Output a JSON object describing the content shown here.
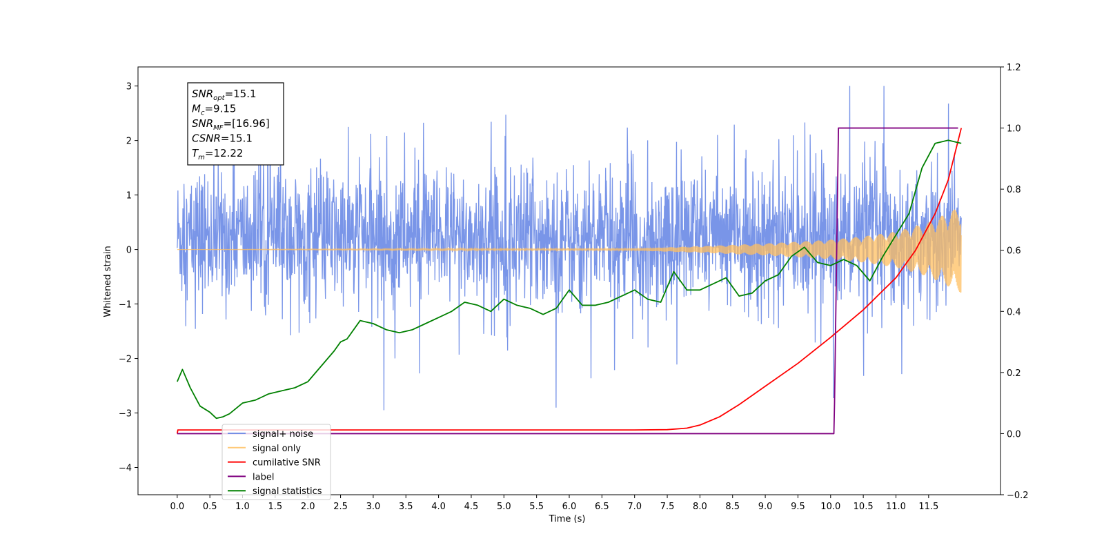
{
  "chart_data": {
    "type": "line",
    "xlabel": "Time (s)",
    "ylabel_left": "Whitened strain",
    "ylabel_right": "",
    "xlim": [
      -0.6,
      12.6
    ],
    "ylim_left": [
      -4.5,
      3.35
    ],
    "ylim_right": [
      -0.2,
      1.2
    ],
    "x_ticks": [
      "0.0",
      "0.5",
      "1.0",
      "1.5",
      "2.0",
      "2.5",
      "3.0",
      "3.5",
      "4.0",
      "4.5",
      "5.0",
      "5.5",
      "6.0",
      "6.5",
      "7.0",
      "7.5",
      "8.0",
      "8.5",
      "9.0",
      "9.5",
      "10.0",
      "10.5",
      "11.0",
      "11.5"
    ],
    "y_ticks_left": [
      3,
      2,
      1,
      0,
      -1,
      -2,
      -3,
      -4
    ],
    "y_ticks_right": [
      1.2,
      1.0,
      0.8,
      0.6,
      0.4,
      0.2,
      0.0,
      -0.2
    ],
    "y_tick_labels_left": [
      "3",
      "2",
      "1",
      "0",
      "−1",
      "−2",
      "−3",
      "−4"
    ],
    "y_tick_labels_right": [
      "1.2",
      "1.0",
      "0.8",
      "0.6",
      "0.4",
      "0.2",
      "0.0",
      "−0.2"
    ],
    "grid": false,
    "legend_placement": "lower-left",
    "annotation": {
      "lines": [
        {
          "base": "SNR",
          "sub": "opt",
          "rest": "=15.1"
        },
        {
          "base": "M",
          "sub": "c",
          "rest": "=9.15"
        },
        {
          "base": "SNR",
          "sub": "MF",
          "rest": "=[16.96]"
        },
        {
          "base": "CSNR",
          "sub": "",
          "rest": "=15.1"
        },
        {
          "base": "T",
          "sub": "m",
          "rest": "=12.22"
        }
      ]
    },
    "series": [
      {
        "name": "signal+ noise",
        "color": "#6283e4",
        "axis": "left",
        "style": "noise",
        "x_range": [
          0.0,
          12.0
        ],
        "approx_envelope": {
          "upper": 2.4,
          "lower": -2.0,
          "peak_max": 3.0,
          "peak_min": -3.2
        }
      },
      {
        "name": "signal only",
        "color": "#ffbf60",
        "axis": "left",
        "style": "chirp",
        "x_range": [
          0.0,
          12.0
        ],
        "amplitude": [
          [
            0.0,
            0.0
          ],
          [
            7.0,
            0.02
          ],
          [
            8.0,
            0.06
          ],
          [
            9.0,
            0.11
          ],
          [
            10.0,
            0.18
          ],
          [
            10.5,
            0.24
          ],
          [
            11.0,
            0.33
          ],
          [
            11.5,
            0.5
          ],
          [
            12.0,
            0.8
          ]
        ]
      },
      {
        "name": "cumilative SNR",
        "color": "#ff0000",
        "axis": "right",
        "x": [
          0.0,
          0.01,
          1.0,
          2.0,
          3.0,
          4.0,
          5.0,
          6.0,
          7.0,
          7.5,
          7.8,
          8.0,
          8.3,
          8.6,
          9.0,
          9.5,
          10.0,
          10.5,
          11.0,
          11.3,
          11.6,
          11.8,
          12.0
        ],
        "y": [
          0.0,
          0.012,
          0.012,
          0.012,
          0.012,
          0.012,
          0.012,
          0.012,
          0.012,
          0.013,
          0.018,
          0.028,
          0.055,
          0.095,
          0.155,
          0.23,
          0.315,
          0.405,
          0.51,
          0.6,
          0.72,
          0.83,
          1.0
        ]
      },
      {
        "name": "label",
        "color": "#800080",
        "axis": "right",
        "x": [
          0.0,
          10.05,
          10.06,
          10.12,
          11.95
        ],
        "y": [
          0.0,
          0.0,
          0.1,
          1.0,
          1.0
        ]
      },
      {
        "name": "signal statistics",
        "color": "#008000",
        "axis": "right",
        "x": [
          0.0,
          0.08,
          0.2,
          0.35,
          0.5,
          0.6,
          0.7,
          0.8,
          1.0,
          1.2,
          1.4,
          1.6,
          1.8,
          2.0,
          2.2,
          2.4,
          2.5,
          2.6,
          2.8,
          3.0,
          3.2,
          3.4,
          3.6,
          3.8,
          4.0,
          4.2,
          4.4,
          4.6,
          4.8,
          5.0,
          5.2,
          5.4,
          5.6,
          5.8,
          6.0,
          6.2,
          6.4,
          6.6,
          6.8,
          7.0,
          7.2,
          7.4,
          7.6,
          7.8,
          8.0,
          8.2,
          8.4,
          8.6,
          8.8,
          9.0,
          9.2,
          9.4,
          9.6,
          9.8,
          10.0,
          10.2,
          10.4,
          10.6,
          10.8,
          11.0,
          11.2,
          11.4,
          11.6,
          11.8,
          12.0
        ],
        "y": [
          0.17,
          0.21,
          0.15,
          0.09,
          0.07,
          0.05,
          0.055,
          0.065,
          0.1,
          0.11,
          0.13,
          0.14,
          0.15,
          0.17,
          0.22,
          0.27,
          0.3,
          0.31,
          0.37,
          0.36,
          0.34,
          0.33,
          0.34,
          0.36,
          0.38,
          0.4,
          0.43,
          0.42,
          0.4,
          0.44,
          0.42,
          0.41,
          0.39,
          0.41,
          0.47,
          0.42,
          0.42,
          0.43,
          0.45,
          0.47,
          0.44,
          0.43,
          0.53,
          0.47,
          0.47,
          0.49,
          0.51,
          0.45,
          0.46,
          0.5,
          0.52,
          0.58,
          0.61,
          0.56,
          0.55,
          0.57,
          0.55,
          0.5,
          0.58,
          0.65,
          0.72,
          0.87,
          0.95,
          0.96,
          0.95
        ]
      }
    ]
  }
}
